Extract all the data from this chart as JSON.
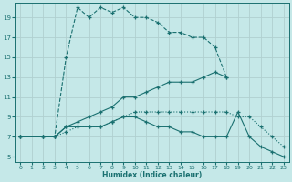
{
  "xlabel": "Humidex (Indice chaleur)",
  "bg_color": "#c5e8e8",
  "line_color": "#1a7070",
  "grid_color": "#b0d0d0",
  "xlim": [
    -0.5,
    23.5
  ],
  "ylim": [
    4.5,
    20.5
  ],
  "yticks": [
    5,
    7,
    9,
    11,
    13,
    15,
    17,
    19
  ],
  "xticks": [
    0,
    1,
    2,
    3,
    4,
    5,
    6,
    7,
    8,
    9,
    10,
    11,
    12,
    13,
    14,
    15,
    16,
    17,
    18,
    19,
    20,
    21,
    22,
    23
  ],
  "line1_x": [
    0,
    2,
    3,
    4,
    5,
    6,
    7,
    8,
    9,
    10,
    11,
    12,
    13,
    14,
    15,
    16,
    17,
    18
  ],
  "line1_y": [
    7,
    7,
    7,
    15,
    20,
    19,
    20,
    19.5,
    20,
    19,
    19,
    18.5,
    17.5,
    17.5,
    17,
    17,
    16,
    13
  ],
  "line2_x": [
    0,
    2,
    3,
    4,
    5,
    6,
    7,
    8,
    9,
    10,
    11,
    12,
    13,
    14,
    15,
    16,
    17,
    18,
    19,
    20,
    21,
    22,
    23
  ],
  "line2_y": [
    7,
    7,
    7,
    8,
    8,
    8,
    8,
    8.5,
    9,
    9,
    8.5,
    8,
    8,
    7.5,
    7.5,
    7,
    7,
    7,
    9.5,
    7,
    6,
    5.5,
    5
  ],
  "line3_x": [
    0,
    2,
    3,
    4,
    5,
    6,
    7,
    8,
    9,
    10,
    11,
    12,
    13,
    14,
    15,
    16,
    17,
    18,
    19,
    20,
    21,
    22,
    23
  ],
  "line3_y": [
    7,
    7,
    7,
    7.5,
    8,
    8,
    8,
    8.5,
    9,
    9.5,
    9.5,
    9.5,
    9.5,
    9.5,
    9.5,
    9.5,
    9.5,
    9.5,
    9,
    9,
    8,
    7,
    6
  ],
  "line4_x": [
    0,
    2,
    3,
    4,
    5,
    6,
    7,
    8,
    9,
    10,
    11,
    12,
    13,
    14,
    15,
    16,
    17,
    18
  ],
  "line4_y": [
    7,
    7,
    7,
    8,
    8.5,
    9,
    9.5,
    10,
    11,
    11,
    11.5,
    12,
    12.5,
    12.5,
    12.5,
    13,
    13.5,
    13
  ]
}
